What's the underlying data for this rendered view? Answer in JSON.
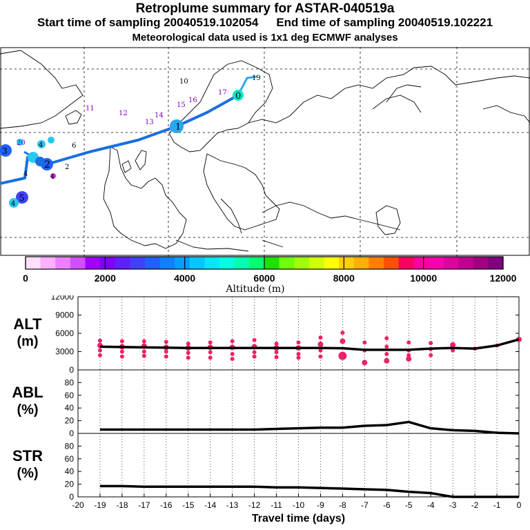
{
  "header": {
    "title": "Retroplume summary for ASTAR-040519a",
    "start_label": "Start time of sampling 20040519.102054",
    "end_label": "End time of sampling 20040519.102221",
    "met_label": "Meteorological data used is 1x1 deg ECMWF analyses"
  },
  "map": {
    "track_color": "#1a6fe0",
    "track_color_light": "#2aa8f0",
    "labels_dark": [
      {
        "text": "10",
        "color": "#000000"
      },
      {
        "text": "6",
        "color": "#000000"
      },
      {
        "text": "4",
        "color": "#000000"
      },
      {
        "text": "3",
        "color": "#000000"
      },
      {
        "text": "2",
        "color": "#000000"
      }
    ],
    "labels_purple": [
      {
        "text": "11",
        "color": "#8000c0"
      },
      {
        "text": "12",
        "color": "#8000c0"
      },
      {
        "text": "13",
        "color": "#8000c0"
      },
      {
        "text": "14",
        "color": "#8000c0"
      },
      {
        "text": "15",
        "color": "#8000c0"
      },
      {
        "text": "16",
        "color": "#8000c0"
      },
      {
        "text": "17",
        "color": "#8000c0"
      },
      {
        "text": "20",
        "color": "#8000c0"
      }
    ],
    "labels_track": [
      {
        "text": "19",
        "color": "#000000"
      },
      {
        "text": "0",
        "color": "#000000"
      },
      {
        "text": "1",
        "color": "#000000"
      },
      {
        "text": "3",
        "color": "#000000"
      },
      {
        "text": "4",
        "color": "#000000"
      },
      {
        "text": "2",
        "color": "#000000"
      },
      {
        "text": "5",
        "color": "#000000"
      },
      {
        "text": "4",
        "color": "#000000"
      },
      {
        "text": "4",
        "color": "#000000"
      }
    ]
  },
  "colorbar": {
    "colors": [
      "#ffe0ff",
      "#ffb0ff",
      "#ee80ff",
      "#d050ff",
      "#a000ff",
      "#8000ff",
      "#6020ff",
      "#4040ff",
      "#2060ff",
      "#1080ff",
      "#00a0ff",
      "#00c8ff",
      "#00e8f8",
      "#00ffe0",
      "#00ffb0",
      "#00ff70",
      "#20e000",
      "#70ff00",
      "#a0ff00",
      "#d0ff00",
      "#ffff00",
      "#ffd000",
      "#ffb000",
      "#ff8000",
      "#ff5000",
      "#ff0060",
      "#ff00a0",
      "#ff00b0",
      "#e000a0",
      "#c00090",
      "#a00080",
      "#800080"
    ],
    "tick_labels": [
      "0",
      "2000",
      "4000",
      "6000",
      "8000",
      "10000",
      "12000"
    ],
    "label": "Altitude (m)"
  },
  "chart_data": [
    {
      "type": "line",
      "panel": "ALT",
      "ylabel_top": "ALT",
      "ylabel_bottom": "(m)",
      "ylim": [
        0,
        12000
      ],
      "yticks": [
        "12000",
        "9000",
        "6000",
        "3000",
        "0"
      ],
      "x": [
        -19,
        -18,
        -17,
        -16,
        -15,
        -14,
        -13,
        -12,
        -11,
        -10,
        -9,
        -8,
        -7,
        -6,
        -5,
        -4,
        -3,
        -2,
        -1,
        0
      ],
      "values": [
        3800,
        3750,
        3700,
        3650,
        3600,
        3600,
        3600,
        3600,
        3600,
        3600,
        3600,
        3550,
        3300,
        3300,
        3300,
        3500,
        3600,
        3500,
        4000,
        5000
      ],
      "scatter": {
        "color": "#f0206a",
        "points": [
          [
            -19,
            4800
          ],
          [
            -19,
            4000
          ],
          [
            -19,
            3200
          ],
          [
            -19,
            2400
          ],
          [
            -18,
            4700
          ],
          [
            -18,
            3800
          ],
          [
            -18,
            3000
          ],
          [
            -18,
            2200
          ],
          [
            -17,
            4700
          ],
          [
            -17,
            3900
          ],
          [
            -17,
            3000
          ],
          [
            -17,
            2300
          ],
          [
            -16,
            4600
          ],
          [
            -16,
            3700
          ],
          [
            -16,
            3000
          ],
          [
            -16,
            2200
          ],
          [
            -15,
            4300
          ],
          [
            -15,
            3600
          ],
          [
            -15,
            2800
          ],
          [
            -15,
            2000
          ],
          [
            -14,
            4500
          ],
          [
            -14,
            3700
          ],
          [
            -14,
            2900
          ],
          [
            -14,
            2000
          ],
          [
            -13,
            4700
          ],
          [
            -13,
            3700
          ],
          [
            -13,
            2600
          ],
          [
            -13,
            1800
          ],
          [
            -12,
            4900
          ],
          [
            -12,
            3800
          ],
          [
            -12,
            2900
          ],
          [
            -12,
            2200
          ],
          [
            -11,
            4300
          ],
          [
            -11,
            3600
          ],
          [
            -11,
            2900
          ],
          [
            -11,
            2100
          ],
          [
            -10,
            4500
          ],
          [
            -10,
            3600
          ],
          [
            -10,
            2600
          ],
          [
            -10,
            2000
          ],
          [
            -9,
            5300
          ],
          [
            -9,
            4200
          ],
          [
            -9,
            3200
          ],
          [
            -9,
            2200
          ],
          [
            -8,
            6100
          ],
          [
            -8,
            4700
          ],
          [
            -8,
            2300
          ],
          [
            -7,
            4500
          ],
          [
            -7,
            3200
          ],
          [
            -7,
            1200
          ],
          [
            -6,
            5200
          ],
          [
            -6,
            3800
          ],
          [
            -6,
            2600
          ],
          [
            -6,
            1500
          ],
          [
            -5,
            4500
          ],
          [
            -5,
            3200
          ],
          [
            -5,
            2400
          ],
          [
            -5,
            1800
          ],
          [
            -4,
            4400
          ],
          [
            -4,
            3400
          ],
          [
            -4,
            2400
          ],
          [
            -3,
            4100
          ],
          [
            -3,
            3200
          ],
          [
            -2,
            3500
          ],
          [
            -1,
            4000
          ],
          [
            0,
            5000
          ]
        ]
      }
    },
    {
      "type": "line",
      "panel": "ABL",
      "ylabel_top": "ABL",
      "ylabel_bottom": "(%)",
      "ylim": [
        0,
        100
      ],
      "yticks": [
        "80",
        "60",
        "40",
        "20",
        "0"
      ],
      "x": [
        -19,
        -18,
        -17,
        -16,
        -15,
        -14,
        -13,
        -12,
        -11,
        -10,
        -9,
        -8,
        -7,
        -6,
        -5,
        -4,
        -3,
        -2,
        -1,
        0
      ],
      "values": [
        6,
        6,
        6,
        6,
        6,
        6,
        6,
        6,
        7,
        8,
        9,
        9,
        12,
        13,
        18,
        8,
        5,
        4,
        1,
        0
      ]
    },
    {
      "type": "line",
      "panel": "STR",
      "ylabel_top": "STR",
      "ylabel_bottom": "(%)",
      "ylim": [
        0,
        100
      ],
      "yticks": [
        "80",
        "60",
        "40",
        "20",
        "0"
      ],
      "x": [
        -19,
        -18,
        -17,
        -16,
        -15,
        -14,
        -13,
        -12,
        -11,
        -10,
        -9,
        -8,
        -7,
        -6,
        -5,
        -4,
        -3,
        -2,
        -1,
        0
      ],
      "values": [
        17,
        17,
        16,
        16,
        16,
        16,
        16,
        16,
        15,
        15,
        14,
        13,
        12,
        11,
        8,
        6,
        0,
        0,
        0,
        0
      ],
      "xlabel": "Travel time (days)",
      "xticks": [
        "-20",
        "-19",
        "-18",
        "-17",
        "-16",
        "-15",
        "-14",
        "-13",
        "-12",
        "-11",
        "-10",
        "-9",
        "-8",
        "-7",
        "-6",
        "-5",
        "-4",
        "-3",
        "-2",
        "-1",
        "0"
      ],
      "xlim": [
        -20,
        0
      ]
    }
  ]
}
